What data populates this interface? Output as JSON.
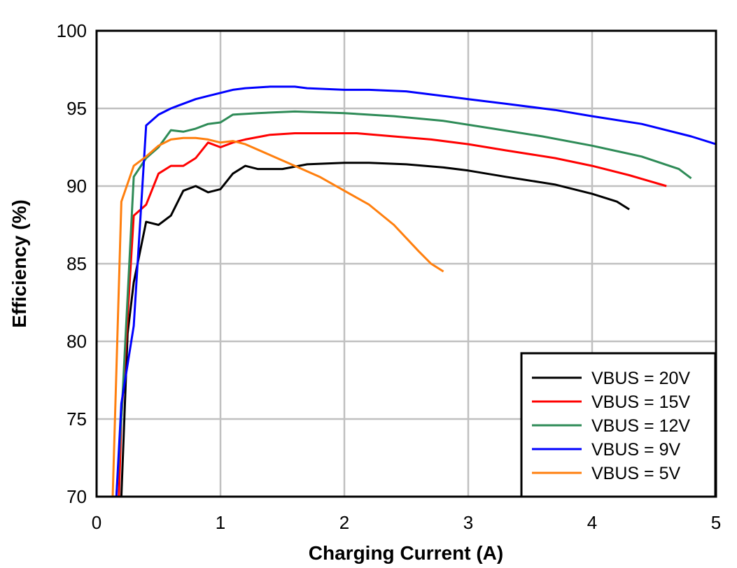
{
  "chart_data": {
    "type": "line",
    "title": "",
    "xlabel": "Charging Current (A)",
    "ylabel": "Efficiency (%)",
    "xlim": [
      0,
      5
    ],
    "ylim": [
      70,
      100
    ],
    "xticks": [
      0,
      1,
      2,
      3,
      4,
      5
    ],
    "yticks": [
      70,
      75,
      80,
      85,
      90,
      95,
      100
    ],
    "grid": true,
    "legend_position": "lower right",
    "series": [
      {
        "name": "VBUS = 20V",
        "color": "#000000",
        "x": [
          0.2,
          0.25,
          0.3,
          0.4,
          0.5,
          0.6,
          0.7,
          0.8,
          0.9,
          1.0,
          1.1,
          1.2,
          1.3,
          1.5,
          1.7,
          2.0,
          2.2,
          2.5,
          2.8,
          3.0,
          3.3,
          3.7,
          4.0,
          4.2,
          4.3
        ],
        "y": [
          70,
          80.5,
          83.8,
          87.7,
          87.5,
          88.1,
          89.7,
          90.0,
          89.6,
          89.8,
          90.8,
          91.3,
          91.1,
          91.1,
          91.4,
          91.5,
          91.5,
          91.4,
          91.2,
          91.0,
          90.6,
          90.1,
          89.5,
          89.0,
          88.5
        ]
      },
      {
        "name": "VBUS = 15V",
        "color": "#ff0000",
        "x": [
          0.18,
          0.2,
          0.3,
          0.4,
          0.5,
          0.6,
          0.7,
          0.8,
          0.9,
          1.0,
          1.1,
          1.2,
          1.4,
          1.6,
          1.8,
          2.1,
          2.4,
          2.7,
          3.0,
          3.3,
          3.7,
          4.0,
          4.3,
          4.6
        ],
        "y": [
          70,
          75,
          88.1,
          88.8,
          90.8,
          91.3,
          91.3,
          91.8,
          92.8,
          92.5,
          92.8,
          93.0,
          93.3,
          93.4,
          93.4,
          93.4,
          93.2,
          93.0,
          92.7,
          92.3,
          91.8,
          91.3,
          90.7,
          90.0
        ],
        "note": "near-vertical rise from 70% at ~0.18A"
      },
      {
        "name": "VBUS = 12V",
        "color": "#2e8b57",
        "x": [
          0.16,
          0.2,
          0.3,
          0.4,
          0.5,
          0.6,
          0.7,
          0.8,
          0.9,
          1.0,
          1.1,
          1.3,
          1.6,
          2.0,
          2.4,
          2.8,
          3.2,
          3.6,
          4.0,
          4.4,
          4.7,
          4.8
        ],
        "y": [
          70,
          75,
          90.6,
          91.8,
          92.5,
          93.6,
          93.5,
          93.7,
          94.0,
          94.1,
          94.6,
          94.7,
          94.8,
          94.7,
          94.5,
          94.2,
          93.7,
          93.2,
          92.6,
          91.9,
          91.1,
          90.5
        ]
      },
      {
        "name": "VBUS = 9V",
        "color": "#0000ff",
        "x": [
          0.16,
          0.2,
          0.3,
          0.4,
          0.5,
          0.6,
          0.7,
          0.8,
          0.9,
          1.0,
          1.1,
          1.2,
          1.4,
          1.6,
          1.7,
          2.0,
          2.2,
          2.5,
          2.8,
          3.0,
          3.3,
          3.7,
          4.0,
          4.4,
          4.8,
          5.0
        ],
        "y": [
          70,
          76,
          81,
          93.9,
          94.6,
          95.0,
          95.3,
          95.6,
          95.8,
          96.0,
          96.2,
          96.3,
          96.4,
          96.4,
          96.3,
          96.2,
          96.2,
          96.1,
          95.8,
          95.6,
          95.3,
          94.9,
          94.5,
          94.0,
          93.2,
          92.7
        ]
      },
      {
        "name": "VBUS = 5V",
        "color": "#ff7f0e",
        "x": [
          0.13,
          0.2,
          0.3,
          0.4,
          0.5,
          0.6,
          0.7,
          0.8,
          0.9,
          1.0,
          1.1,
          1.2,
          1.4,
          1.6,
          1.8,
          2.0,
          2.2,
          2.4,
          2.6,
          2.7,
          2.8
        ],
        "y": [
          70,
          89.0,
          91.3,
          91.9,
          92.6,
          93.0,
          93.1,
          93.1,
          93.0,
          92.8,
          92.9,
          92.7,
          92.0,
          91.3,
          90.6,
          89.7,
          88.8,
          87.5,
          85.8,
          85.0,
          84.5
        ]
      }
    ]
  },
  "axes": {
    "xlabel": "Charging Current (A)",
    "ylabel": "Efficiency (%)",
    "xtick_labels": [
      "0",
      "1",
      "2",
      "3",
      "4",
      "5"
    ],
    "ytick_labels": [
      "70",
      "75",
      "80",
      "85",
      "90",
      "95",
      "100"
    ]
  },
  "legend": {
    "items": [
      {
        "label": "VBUS = 20V",
        "color": "#000000"
      },
      {
        "label": "VBUS = 15V",
        "color": "#ff0000"
      },
      {
        "label": "VBUS = 12V",
        "color": "#2e8b57"
      },
      {
        "label": "VBUS = 9V",
        "color": "#0000ff"
      },
      {
        "label": "VBUS = 5V",
        "color": "#ff7f0e"
      }
    ]
  }
}
